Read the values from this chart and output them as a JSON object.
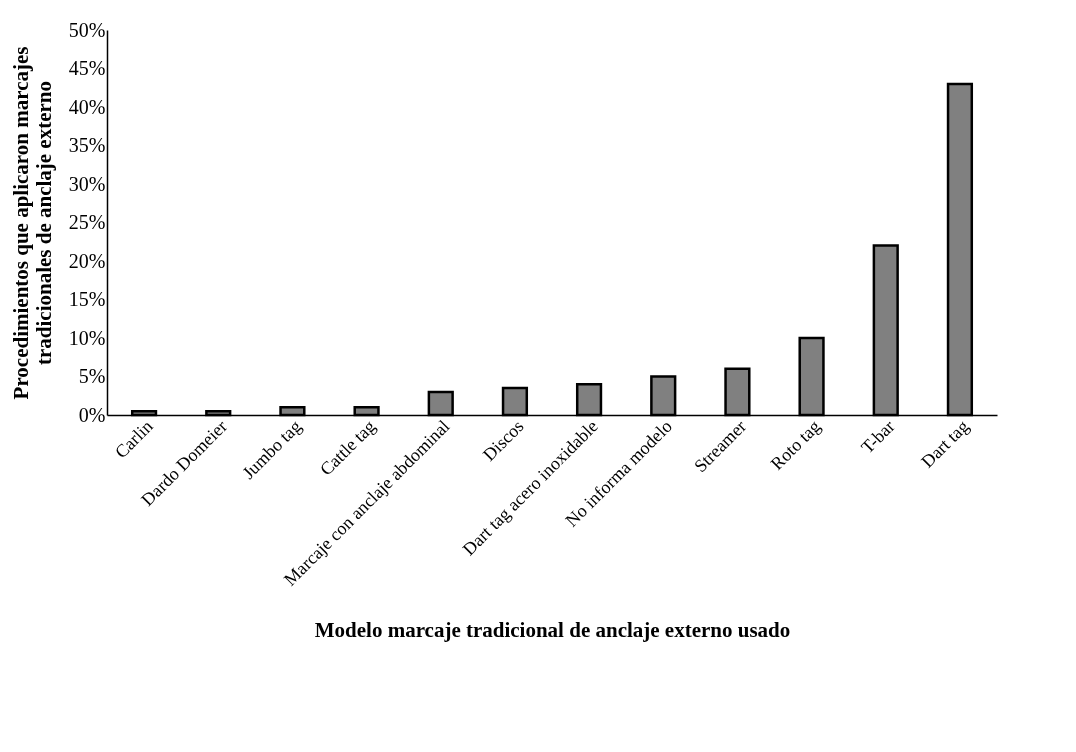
{
  "chart_data": {
    "type": "bar",
    "xlabel": "Modelo marcaje tradicional de anclaje externo usado",
    "ylabel": "Procedimientos que aplicaron marcajes tradicionales de anclaje externo",
    "categories": [
      "Carlin",
      "Dardo Domeier",
      "Jumbo tag",
      "Cattle tag",
      "Marcaje con anclaje abdominal",
      "Discos",
      "Dart tag acero inoxidable",
      "No informa modelo",
      "Streamer",
      "Roto tag",
      "T-bar",
      "Dart tag"
    ],
    "values": [
      0.5,
      0.5,
      1,
      1,
      3,
      3.5,
      4,
      5,
      6,
      10,
      22,
      43
    ],
    "color": "#808080",
    "ylim": [
      0,
      50
    ],
    "yticks": [
      {
        "value": 0,
        "label": "0%"
      },
      {
        "value": 5,
        "label": "5%"
      },
      {
        "value": 10,
        "label": "10%"
      },
      {
        "value": 15,
        "label": "15%"
      },
      {
        "value": 20,
        "label": "20%"
      },
      {
        "value": 25,
        "label": "25%"
      },
      {
        "value": 30,
        "label": "30%"
      },
      {
        "value": 35,
        "label": "35%"
      },
      {
        "value": 40,
        "label": "40%"
      },
      {
        "value": 45,
        "label": "45%"
      },
      {
        "value": 50,
        "label": "50%"
      }
    ],
    "grid": false
  }
}
